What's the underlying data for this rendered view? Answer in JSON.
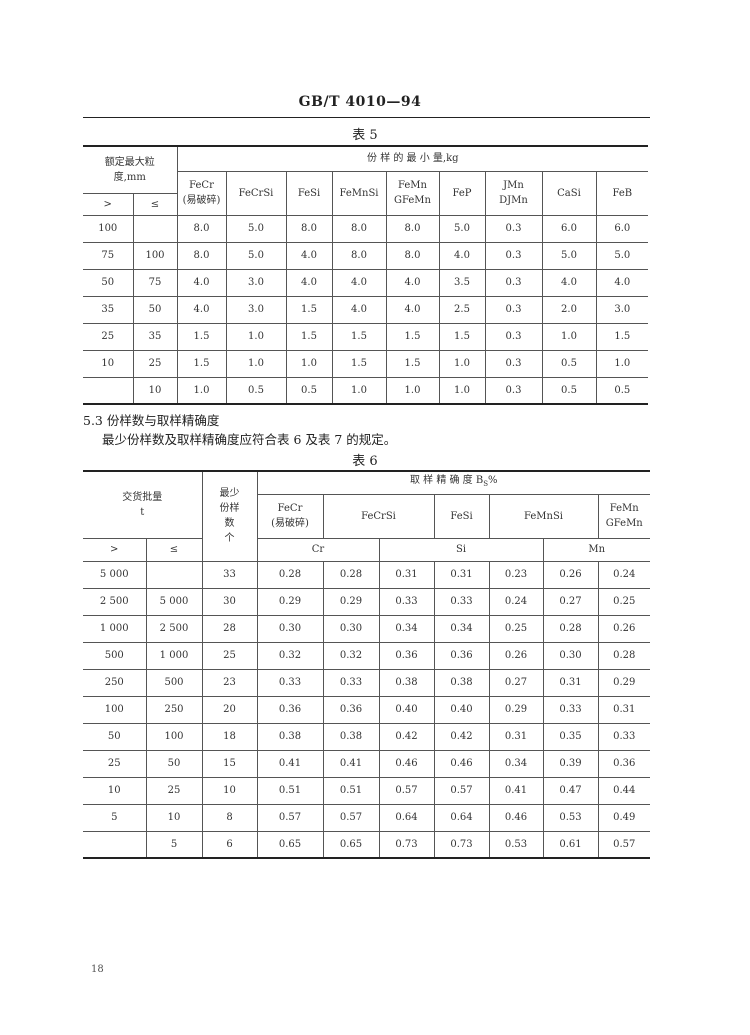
{
  "header": {
    "standard_code": "GB/T 4010—94"
  },
  "table5": {
    "caption": "表 5",
    "size_header": "额定最大粒度,mm",
    "amount_header": "份 样 的 最 小 量,kg",
    "gt": ">",
    "le": "≤",
    "columns": [
      [
        "FeCr",
        "(易破碎)"
      ],
      [
        "FeCrSi",
        ""
      ],
      [
        "FeSi",
        ""
      ],
      [
        "FeMnSi",
        ""
      ],
      [
        "FeMn",
        "GFeMn"
      ],
      [
        "FeP",
        ""
      ],
      [
        "JMn",
        "DJMn"
      ],
      [
        "CaSi",
        ""
      ],
      [
        "FeB",
        ""
      ]
    ],
    "rows": [
      [
        "100",
        "",
        "8.0",
        "5.0",
        "8.0",
        "8.0",
        "8.0",
        "5.0",
        "0.3",
        "6.0",
        "6.0"
      ],
      [
        "75",
        "100",
        "8.0",
        "5.0",
        "4.0",
        "8.0",
        "8.0",
        "4.0",
        "0.3",
        "5.0",
        "5.0"
      ],
      [
        "50",
        "75",
        "4.0",
        "3.0",
        "4.0",
        "4.0",
        "4.0",
        "3.5",
        "0.3",
        "4.0",
        "4.0"
      ],
      [
        "35",
        "50",
        "4.0",
        "3.0",
        "1.5",
        "4.0",
        "4.0",
        "2.5",
        "0.3",
        "2.0",
        "3.0"
      ],
      [
        "25",
        "35",
        "1.5",
        "1.0",
        "1.5",
        "1.5",
        "1.5",
        "1.5",
        "0.3",
        "1.0",
        "1.5"
      ],
      [
        "10",
        "25",
        "1.5",
        "1.0",
        "1.0",
        "1.5",
        "1.5",
        "1.0",
        "0.3",
        "0.5",
        "1.0"
      ],
      [
        "",
        "10",
        "1.0",
        "0.5",
        "0.5",
        "1.0",
        "1.0",
        "1.0",
        "0.3",
        "0.5",
        "0.5"
      ]
    ]
  },
  "section": {
    "heading": "5.3  份样数与取样精确度",
    "body": "最少份样数及取样精确度应符合表 6 及表 7 的规定。"
  },
  "table6": {
    "caption": "表 6",
    "lot_header": "交货批量",
    "lot_unit": "t",
    "min_count_header": [
      "最少",
      "份样",
      "数",
      "个"
    ],
    "precision_header": "取 样 精 确 度 B",
    "precision_sub": "S",
    "precision_unit": "%",
    "gt": ">",
    "le": "≤",
    "alloys": {
      "fecr": [
        "FeCr",
        "(易破碎)"
      ],
      "fecrsi": "FeCrSi",
      "fesi": "FeSi",
      "femnsi": "FeMnSi",
      "femn": [
        "FeMn",
        "GFeMn"
      ]
    },
    "elements": {
      "cr": "Cr",
      "si": "Si",
      "mn": "Mn"
    },
    "rows": [
      [
        "5 000",
        "",
        "33",
        "0.28",
        "0.28",
        "0.31",
        "0.31",
        "0.23",
        "0.26",
        "0.24"
      ],
      [
        "2 500",
        "5 000",
        "30",
        "0.29",
        "0.29",
        "0.33",
        "0.33",
        "0.24",
        "0.27",
        "0.25"
      ],
      [
        "1 000",
        "2 500",
        "28",
        "0.30",
        "0.30",
        "0.34",
        "0.34",
        "0.25",
        "0.28",
        "0.26"
      ],
      [
        "500",
        "1 000",
        "25",
        "0.32",
        "0.32",
        "0.36",
        "0.36",
        "0.26",
        "0.30",
        "0.28"
      ],
      [
        "250",
        "500",
        "23",
        "0.33",
        "0.33",
        "0.38",
        "0.38",
        "0.27",
        "0.31",
        "0.29"
      ],
      [
        "100",
        "250",
        "20",
        "0.36",
        "0.36",
        "0.40",
        "0.40",
        "0.29",
        "0.33",
        "0.31"
      ],
      [
        "50",
        "100",
        "18",
        "0.38",
        "0.38",
        "0.42",
        "0.42",
        "0.31",
        "0.35",
        "0.33"
      ],
      [
        "25",
        "50",
        "15",
        "0.41",
        "0.41",
        "0.46",
        "0.46",
        "0.34",
        "0.39",
        "0.36"
      ],
      [
        "10",
        "25",
        "10",
        "0.51",
        "0.51",
        "0.57",
        "0.57",
        "0.41",
        "0.47",
        "0.44"
      ],
      [
        "5",
        "10",
        "8",
        "0.57",
        "0.57",
        "0.64",
        "0.64",
        "0.46",
        "0.53",
        "0.49"
      ],
      [
        "",
        "5",
        "6",
        "0.65",
        "0.65",
        "0.73",
        "0.73",
        "0.53",
        "0.61",
        "0.57"
      ]
    ]
  },
  "page_number": "18"
}
